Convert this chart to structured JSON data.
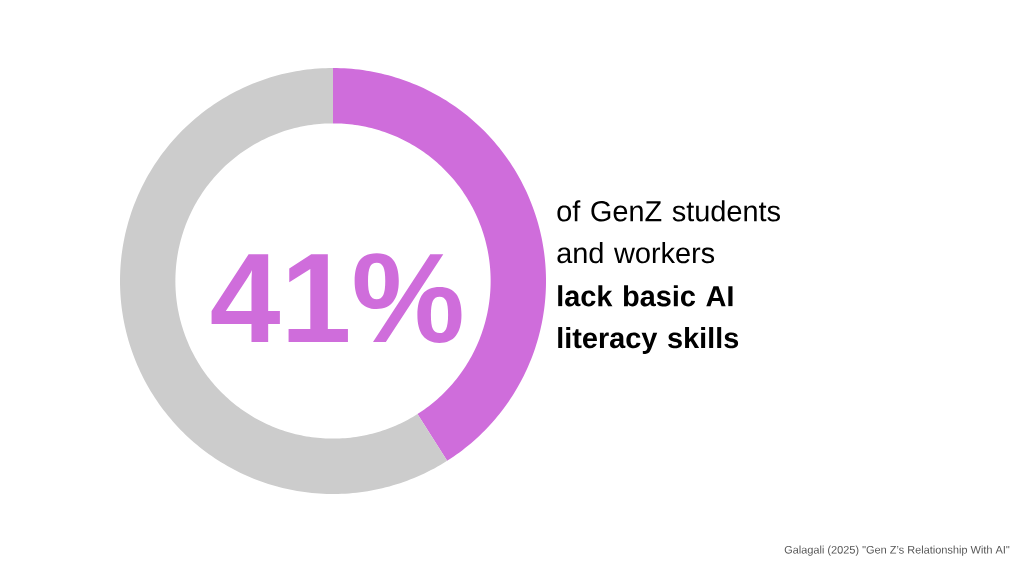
{
  "chart_data": {
    "type": "donut",
    "categories": [
      null,
      null
    ],
    "values": [
      41,
      59
    ],
    "colors": [
      "#cf6ddb",
      "#cccccc"
    ],
    "value_labels": [
      "41%",
      null
    ],
    "annotations": [
      "of GenZ students and workers",
      "lack basic AI literacy skills",
      "Galagali (2025) \"Gen Z’s Relationship With AI\""
    ]
  }
}
